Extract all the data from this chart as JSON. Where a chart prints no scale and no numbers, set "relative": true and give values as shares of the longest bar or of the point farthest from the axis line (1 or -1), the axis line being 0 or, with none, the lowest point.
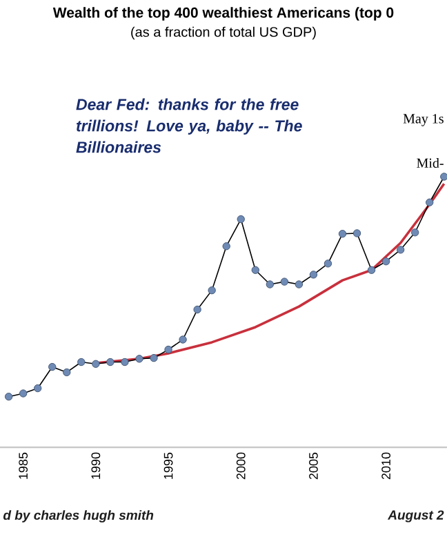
{
  "chart_data": {
    "type": "line",
    "title": "Wealth of the top 400 wealthiest Americans (top 0",
    "subtitle": "(as a fraction of total US GDP)",
    "relative": true,
    "marker": "circle",
    "annotations": [
      "Dear Fed: thanks for the free trillions! Love ya, baby -- The Billionaires",
      "May 1s",
      "Mid-",
      "d by charles hugh smith",
      "August 2"
    ],
    "xlim": [
      1983.4,
      2014.2
    ],
    "xticks": [
      1985,
      1990,
      1995,
      2000,
      2005,
      2010
    ],
    "series": [
      {
        "color": "#6f8bb5",
        "x": [
          1984,
          1985,
          1986,
          1987,
          1988,
          1989,
          1990,
          1991,
          1992,
          1993,
          1994,
          1995,
          1996,
          1997,
          1998,
          1999,
          2000,
          2001,
          2002,
          2003,
          2004,
          2005,
          2006,
          2007,
          2008,
          2009,
          2010,
          2011,
          2012,
          2013,
          2014
        ],
        "values": [
          0.187,
          0.199,
          0.218,
          0.297,
          0.277,
          0.315,
          0.308,
          0.315,
          0.315,
          0.327,
          0.33,
          0.361,
          0.398,
          0.509,
          0.58,
          0.743,
          0.843,
          0.655,
          0.602,
          0.612,
          0.602,
          0.638,
          0.679,
          0.789,
          0.791,
          0.655,
          0.687,
          0.73,
          0.794,
          0.905,
          1.0
        ]
      },
      {
        "type": "line",
        "marker": "none",
        "color": "#c8303c",
        "x": [
          1990,
          1993,
          1995,
          1998,
          2001,
          2004,
          2007,
          2009,
          2011,
          2013,
          2014
        ],
        "values": [
          0.311,
          0.327,
          0.347,
          0.388,
          0.444,
          0.52,
          0.617,
          0.655,
          0.755,
          0.898,
          0.974
        ]
      }
    ]
  }
}
